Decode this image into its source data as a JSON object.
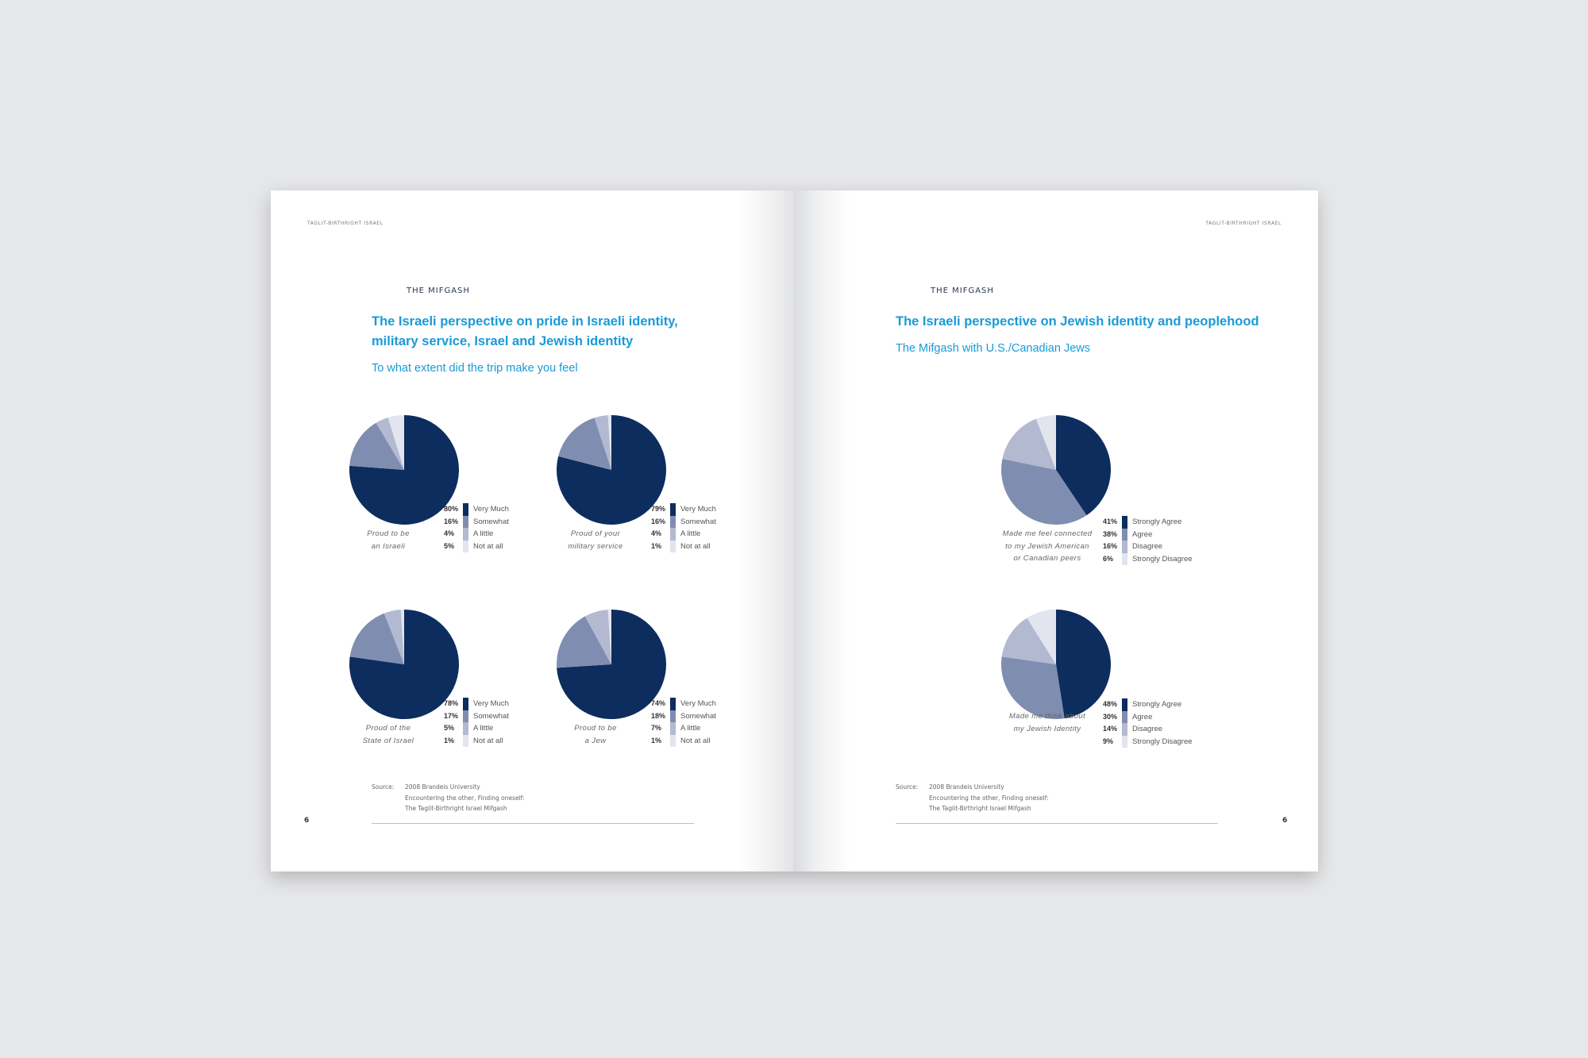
{
  "colors": {
    "dark": "#0d2d5e",
    "mid": "#7f8db0",
    "light": "#b2b9d0",
    "lightest": "#e2e4ee",
    "title": "#1a9ad6",
    "background": "#e6e7e9"
  },
  "left_page": {
    "running_head": "TAGLIT-BIRTHRIGHT ISRAEL",
    "section": "THE MIFGASH",
    "title_line1": "The Israeli perspective on pride in Israeli identity,",
    "title_line2": "military service, Israel and Jewish identity",
    "subtitle": "To what extent did the trip make you feel",
    "source_label": "Source:",
    "source_lines": [
      "2008 Brandeis University",
      "Encountering the other, Finding oneself:",
      "The Taglit-Birthright Israel Mifgash"
    ],
    "page_number": "6"
  },
  "right_page": {
    "running_head": "TAGLIT-BIRTHRIGHT ISRAEL",
    "section": "THE MIFGASH",
    "title_line1": "The Israeli perspective on Jewish identity and peoplehood",
    "subtitle": "The Mifgash with U.S./Canadian Jews",
    "source_label": "Source:",
    "source_lines": [
      "2008 Brandeis University",
      "Encountering the other, Finding oneself:",
      "The Taglit-Birthright Israel Mifgash"
    ],
    "page_number": "6"
  },
  "chart_data": [
    {
      "type": "pie",
      "caption": [
        "Proud to be",
        "an Israeli"
      ],
      "categories": [
        "Very Much",
        "Somewhat",
        "A little",
        "Not at all"
      ],
      "values": [
        80,
        16,
        4,
        5
      ],
      "labels": [
        "80%",
        "16%",
        "4%",
        "5%"
      ]
    },
    {
      "type": "pie",
      "caption": [
        "Proud of your",
        "military service"
      ],
      "categories": [
        "Very Much",
        "Somewhat",
        "A little",
        "Not at all"
      ],
      "values": [
        79,
        16,
        4,
        1
      ],
      "labels": [
        "79%",
        "16%",
        "4%",
        "1%"
      ]
    },
    {
      "type": "pie",
      "caption": [
        "Proud of the",
        "State of Israel"
      ],
      "categories": [
        "Very Much",
        "Somewhat",
        "A little",
        "Not at all"
      ],
      "values": [
        78,
        17,
        5,
        1
      ],
      "labels": [
        "78%",
        "17%",
        "5%",
        "1%"
      ]
    },
    {
      "type": "pie",
      "caption": [
        "Proud to be",
        "a Jew"
      ],
      "categories": [
        "Very Much",
        "Somewhat",
        "A little",
        "Not at all"
      ],
      "values": [
        74,
        18,
        7,
        1
      ],
      "labels": [
        "74%",
        "18%",
        "7%",
        "1%"
      ]
    },
    {
      "type": "pie",
      "caption": [
        "Made me feel connected",
        "to my Jewish American",
        "or Canadian peers"
      ],
      "categories": [
        "Strongly Agree",
        "Agree",
        "Disagree",
        "Strongly Disagree"
      ],
      "values": [
        41,
        38,
        16,
        6
      ],
      "labels": [
        "41%",
        "38%",
        "16%",
        "6%"
      ]
    },
    {
      "type": "pie",
      "caption": [
        "Made me think about",
        "my Jewish Identity"
      ],
      "categories": [
        "Strongly Agree",
        "Agree",
        "Disagree",
        "Strongly Disagree"
      ],
      "values": [
        48,
        30,
        14,
        9
      ],
      "labels": [
        "48%",
        "30%",
        "14%",
        "9%"
      ]
    }
  ]
}
